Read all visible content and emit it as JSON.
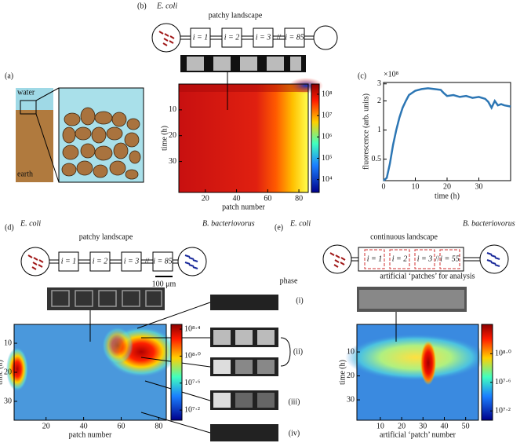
{
  "panel_a": {
    "label": "(a)",
    "water": "water",
    "earth": "earth"
  },
  "panel_b": {
    "label": "(b)",
    "organism": "E. coli",
    "title": "patchy landscape",
    "patches": [
      "i = 1",
      "i = 2",
      "i = 3",
      "i = 85"
    ],
    "heatmap": {
      "xlabel": "patch number",
      "ylabel": "time (h)",
      "xlim": [
        3,
        86
      ],
      "ylim": [
        0,
        42
      ],
      "xticks": [
        20,
        40,
        60,
        80
      ],
      "yticks": [
        10,
        20,
        30
      ],
      "colorbar": {
        "lim": [
          2500,
          300000000
        ],
        "ticks": [
          {
            "value": 100000000,
            "label": "10⁸"
          },
          {
            "value": 10000000,
            "label": "10⁷"
          },
          {
            "value": 1000000,
            "label": "10⁶"
          },
          {
            "value": 100000,
            "label": "10⁵"
          },
          {
            "value": 10000,
            "label": "10⁴"
          }
        ]
      }
    }
  },
  "panel_c": {
    "type": "line",
    "label": "(c)",
    "xlabel": "time (h)",
    "ylabel": "fluorescence (arb. units)",
    "multiplier": "×10⁸",
    "log_y": true,
    "color": "#2c76b4",
    "xlim": [
      0,
      40
    ],
    "ylim": [
      0.3,
      3.1
    ],
    "xticks": [
      0,
      10,
      20,
      30
    ],
    "yticks": [
      0.5,
      1,
      2,
      3
    ],
    "x": [
      0,
      1,
      2,
      3,
      4,
      5,
      6,
      7,
      8,
      10,
      12,
      14,
      16,
      18,
      19,
      20,
      22,
      24,
      26,
      28,
      30,
      32,
      33,
      34,
      35,
      36,
      37,
      38,
      40
    ],
    "values": [
      0.3,
      0.32,
      0.45,
      0.7,
      1.0,
      1.35,
      1.7,
      2.0,
      2.3,
      2.55,
      2.65,
      2.7,
      2.65,
      2.6,
      2.4,
      2.25,
      2.3,
      2.2,
      2.25,
      2.15,
      2.2,
      2.1,
      1.95,
      1.7,
      2.0,
      1.8,
      1.85,
      1.8,
      1.75
    ]
  },
  "panel_d": {
    "label": "(d)",
    "organism": "E. coli",
    "predator": "B. bacteriovorus",
    "title": "patchy landscape",
    "patches": [
      "i = 1",
      "i = 2",
      "i = 3",
      "i = 85"
    ],
    "scale_bar": "100 μm",
    "phase_title": "phase",
    "phases": [
      "(i)",
      "(ii)",
      "(iii)",
      "(iv)"
    ],
    "heatmap": {
      "xlabel": "patch number",
      "ylabel": "time (h)",
      "xlim": [
        3,
        84
      ],
      "ylim": [
        3.5,
        36.5
      ],
      "xticks": [
        20,
        40,
        60,
        80
      ],
      "yticks": [
        10,
        20,
        30
      ],
      "colorbar": {
        "lim": [
          11220185,
          295120923
        ],
        "ticks": [
          {
            "value": 251188643,
            "label": "10⁸·⁴"
          },
          {
            "value": 100000000,
            "label": "10⁸·⁰"
          },
          {
            "value": 39810717,
            "label": "10⁷·⁶"
          },
          {
            "value": 15848932,
            "label": "10⁷·²"
          }
        ]
      }
    }
  },
  "panel_e": {
    "label": "(e)",
    "organism": "E. coli",
    "predator": "B. bacteriovorus",
    "title": "continuous landscape",
    "patches": [
      "i = 1",
      "i = 2",
      "i = 3",
      "i = 55"
    ],
    "note": "artificial ‘patches’ for analysis",
    "heatmap": {
      "xlabel": "artificial ‘patch’ number",
      "ylabel": "time (h)",
      "xlim": [
        -1,
        56
      ],
      "ylim": [
        -1.5,
        38.5
      ],
      "xticks": [
        10,
        20,
        30,
        40,
        50
      ],
      "yticks": [
        10,
        20,
        30
      ],
      "colorbar": {
        "lim": [
          11748976,
          257039578
        ],
        "ticks": [
          {
            "value": 100000000,
            "label": "10⁸·⁰"
          },
          {
            "value": 39810717,
            "label": "10⁷·⁶"
          },
          {
            "value": 15848932,
            "label": "10⁷·²"
          }
        ]
      }
    }
  }
}
